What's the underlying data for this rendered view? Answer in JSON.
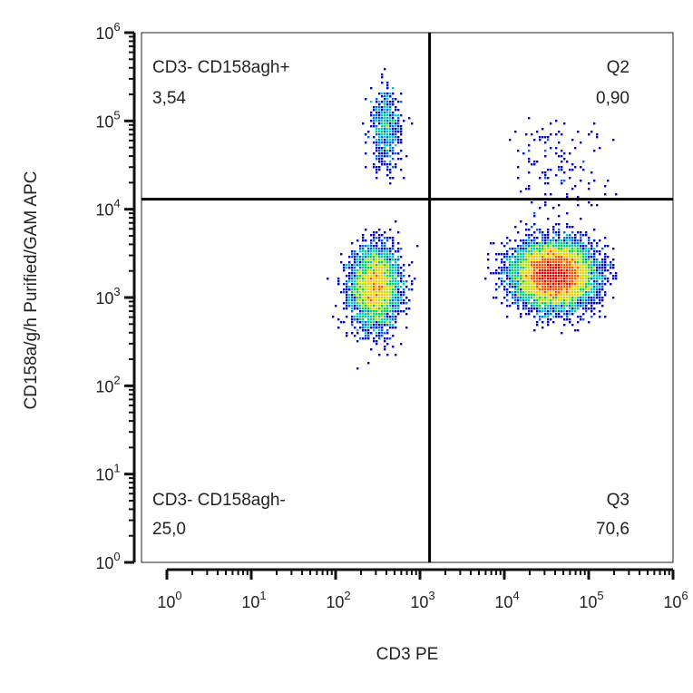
{
  "chart_data": {
    "type": "scatter",
    "subtype": "flow-cytometry density dot plot with quadrant gates",
    "xlabel": "CD3 PE",
    "ylabel": "CD158a/g/h Purified/GAM APC",
    "x_scale": "log",
    "y_scale": "log",
    "xlim": [
      0.5,
      1000000
    ],
    "ylim": [
      1,
      1000000
    ],
    "x_ticks": [
      {
        "base": "10",
        "exp": "0",
        "value": 1
      },
      {
        "base": "10",
        "exp": "1",
        "value": 10
      },
      {
        "base": "10",
        "exp": "2",
        "value": 100
      },
      {
        "base": "10",
        "exp": "3",
        "value": 1000
      },
      {
        "base": "10",
        "exp": "4",
        "value": 10000
      },
      {
        "base": "10",
        "exp": "5",
        "value": 100000
      },
      {
        "base": "10",
        "exp": "6",
        "value": 1000000
      }
    ],
    "y_ticks": [
      {
        "base": "10",
        "exp": "0",
        "value": 1
      },
      {
        "base": "10",
        "exp": "1",
        "value": 10
      },
      {
        "base": "10",
        "exp": "2",
        "value": 100
      },
      {
        "base": "10",
        "exp": "3",
        "value": 1000
      },
      {
        "base": "10",
        "exp": "4",
        "value": 10000
      },
      {
        "base": "10",
        "exp": "5",
        "value": 100000
      },
      {
        "base": "10",
        "exp": "6",
        "value": 1000000
      }
    ],
    "gates": {
      "x_threshold": 1300,
      "y_threshold": 13000
    },
    "quadrants": [
      {
        "position": "top-left",
        "name": "CD3- CD158agh+",
        "percent": "3,54"
      },
      {
        "position": "top-right",
        "name": "Q2",
        "percent": "0,90"
      },
      {
        "position": "bottom-left",
        "name": "CD3- CD158agh-",
        "percent": "25,0"
      },
      {
        "position": "bottom-right",
        "name": "Q3",
        "percent": "70,6"
      }
    ],
    "populations": [
      {
        "x_median": 300,
        "y_median": 1300,
        "x_spread_log": 0.14,
        "y_spread_log": 0.22,
        "weight": 0.25
      },
      {
        "x_median": 400,
        "y_median": 80000,
        "x_spread_log": 0.09,
        "y_spread_log": 0.22,
        "weight": 0.035
      },
      {
        "x_median": 40000,
        "y_median": 1800,
        "x_spread_log": 0.22,
        "y_spread_log": 0.17,
        "weight": 0.706
      },
      {
        "x_median": 40000,
        "y_median": 30000,
        "x_spread_log": 0.3,
        "y_spread_log": 0.3,
        "weight": 0.009
      }
    ],
    "color_scale": [
      "#0000c8",
      "#0064ff",
      "#00c8c8",
      "#00d250",
      "#b4e600",
      "#ffc800",
      "#ff5000",
      "#e60000"
    ],
    "grid": false,
    "legend": "none"
  }
}
